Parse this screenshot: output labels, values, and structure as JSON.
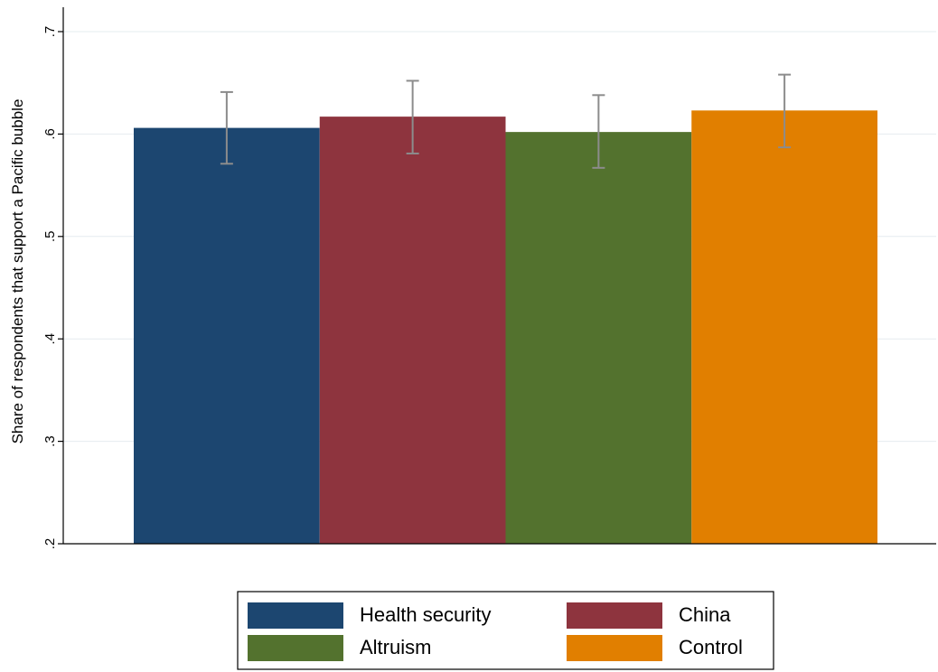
{
  "chart_data": {
    "type": "bar",
    "title": "",
    "xlabel": "",
    "ylabel": "Share of respondents that support a Pacific bubble",
    "ylim": [
      0.2,
      0.7
    ],
    "yticks": [
      {
        "value": 0.2,
        "label": ".2"
      },
      {
        "value": 0.3,
        "label": ".3"
      },
      {
        "value": 0.4,
        "label": ".4"
      },
      {
        "value": 0.5,
        "label": ".5"
      },
      {
        "value": 0.6,
        "label": ".6"
      },
      {
        "value": 0.7,
        "label": ".7"
      }
    ],
    "grid": true,
    "legend_position": "bottom",
    "series": [
      {
        "name": "Health security",
        "value": 0.606,
        "ci_low": 0.571,
        "ci_high": 0.641,
        "color": "#1c4670"
      },
      {
        "name": "China",
        "value": 0.617,
        "ci_low": 0.581,
        "ci_high": 0.652,
        "color": "#8e343e"
      },
      {
        "name": "Altruism",
        "value": 0.602,
        "ci_low": 0.567,
        "ci_high": 0.638,
        "color": "#53722e"
      },
      {
        "name": "Control",
        "value": 0.623,
        "ci_low": 0.587,
        "ci_high": 0.658,
        "color": "#e17f00"
      }
    ]
  }
}
